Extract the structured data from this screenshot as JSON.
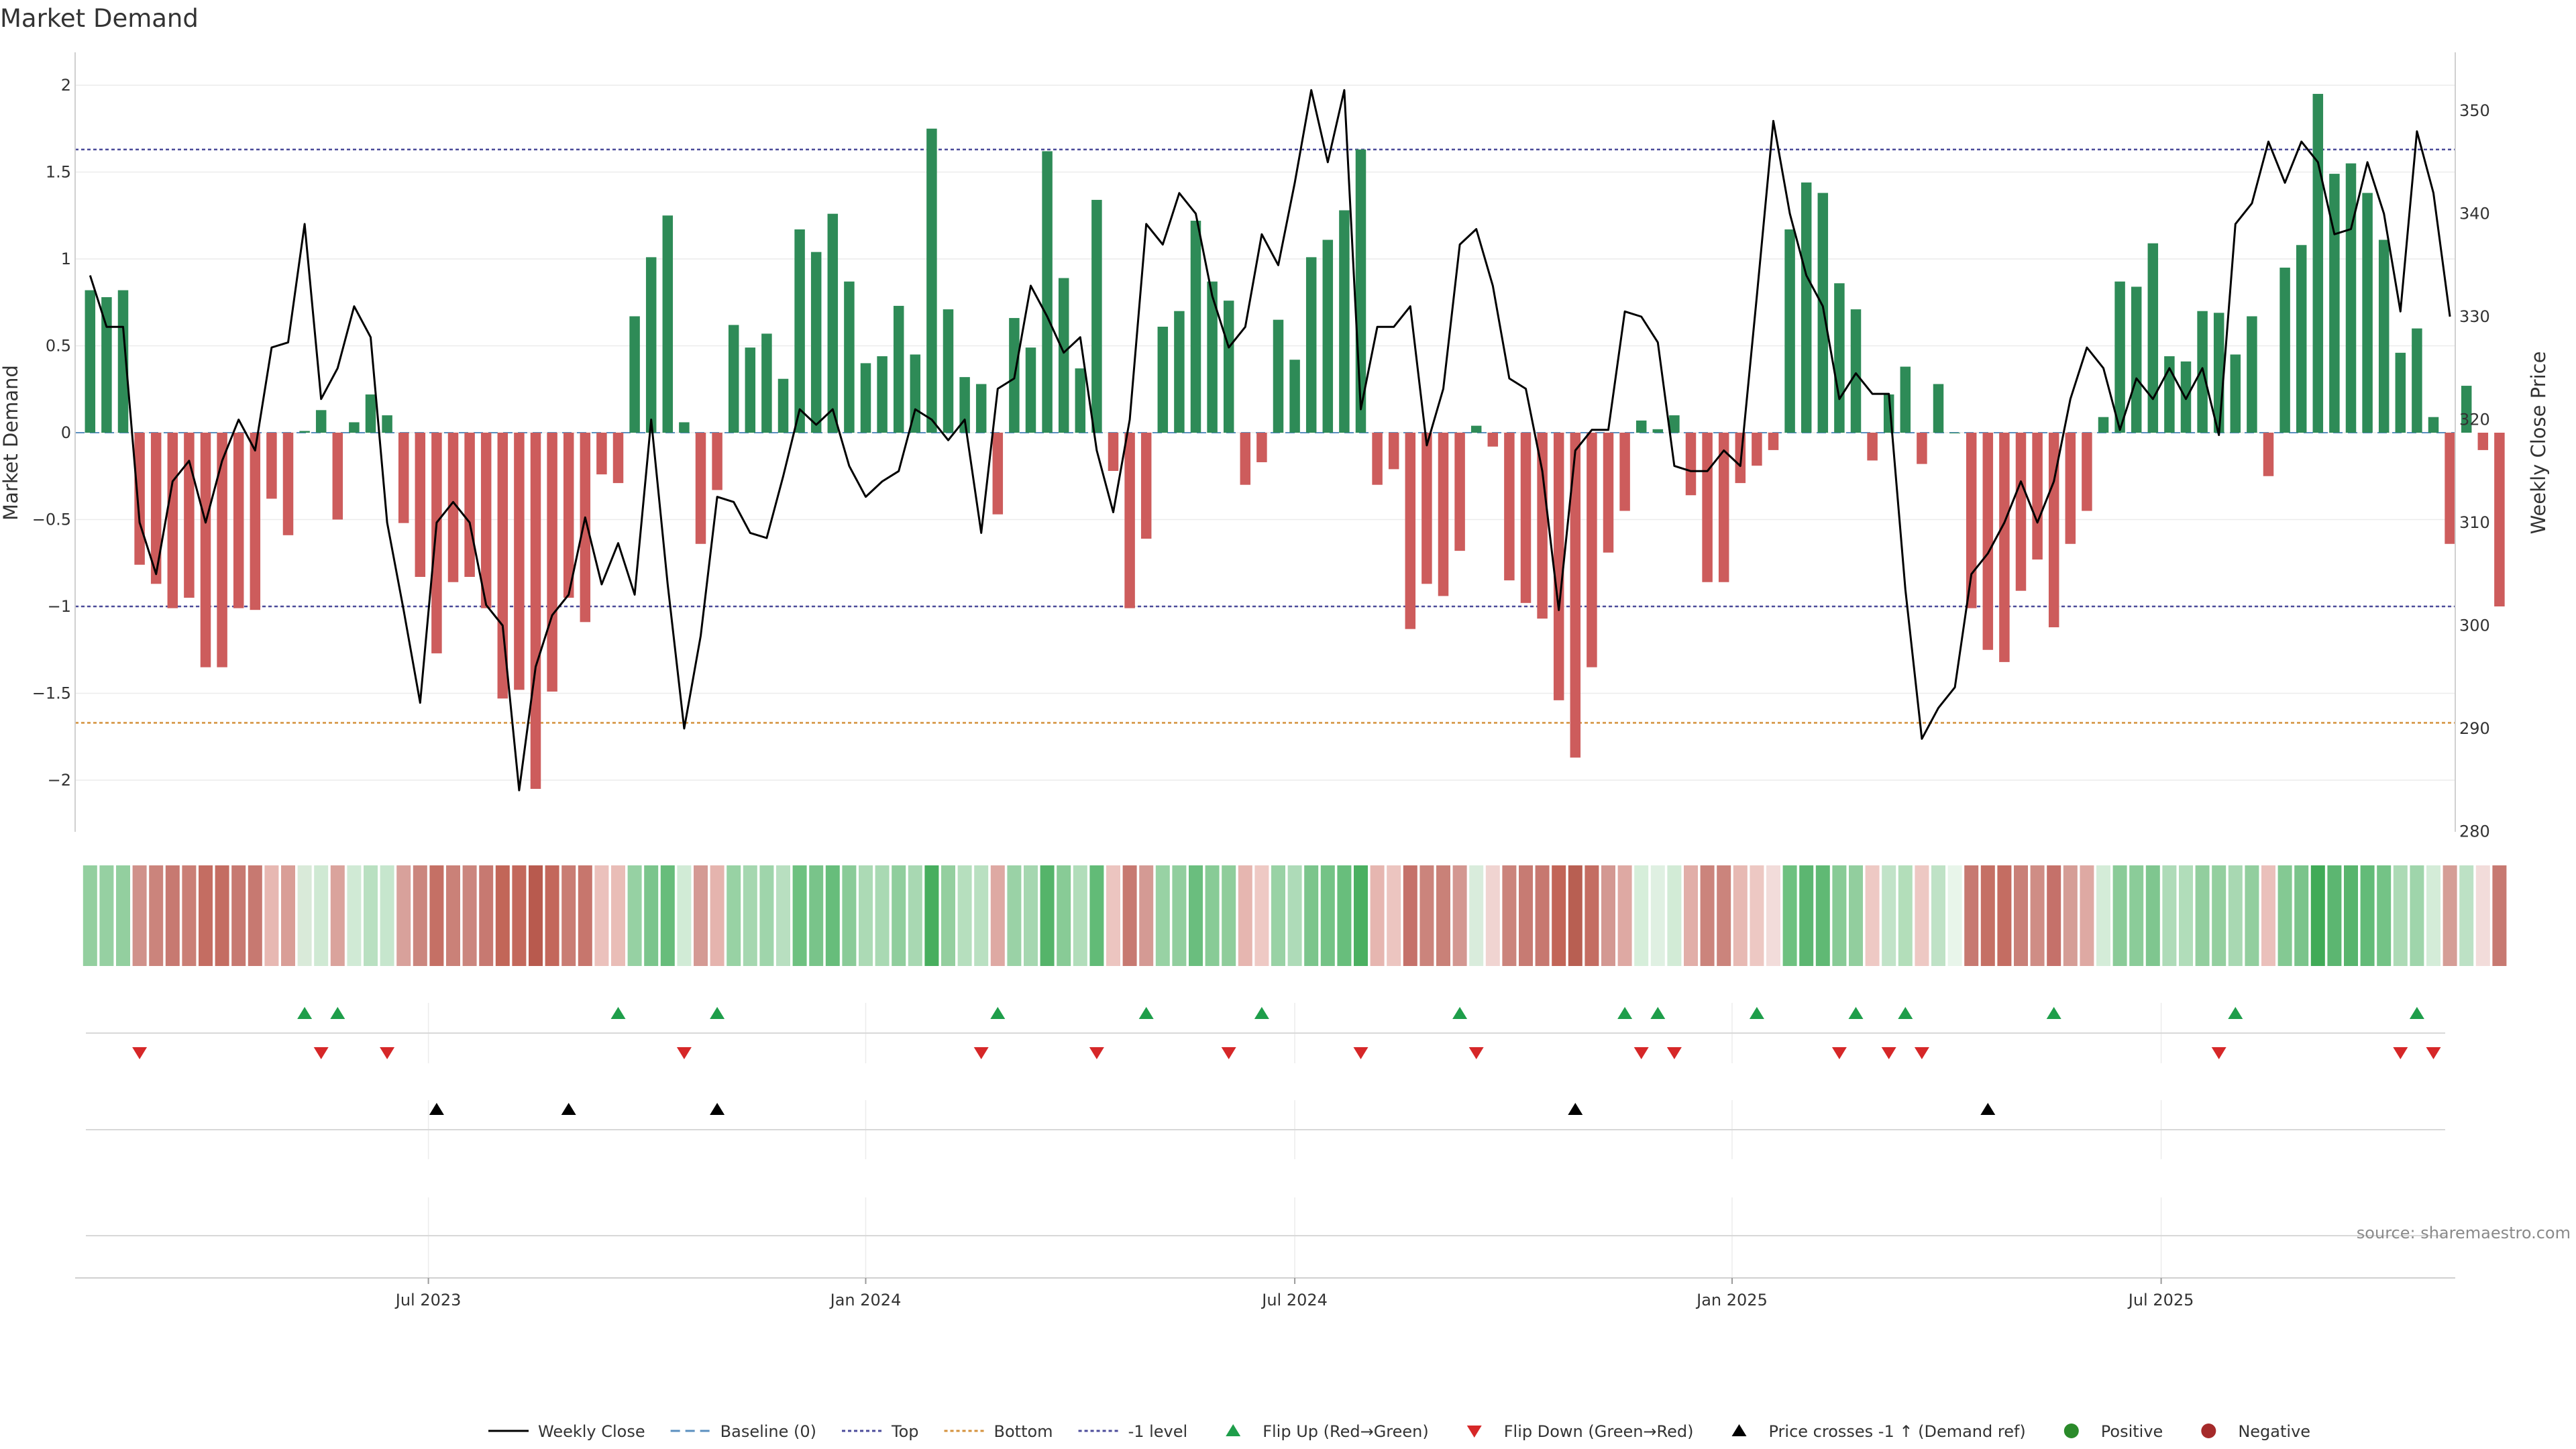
{
  "chart_data": {
    "type": "bar",
    "title": "Market Demand",
    "ylabel": "Market Demand",
    "y2label": "Weekly Close Price",
    "ylim": [
      -2.3,
      2.1
    ],
    "y2lim": [
      280,
      352
    ],
    "yticks": [
      2,
      1.5,
      1,
      0.5,
      0,
      -0.5,
      -1,
      -1.5,
      -2
    ],
    "ytick_labels": [
      "2",
      "1.5",
      "1",
      "0.5",
      "0",
      "−0.5",
      "−1",
      "−1.5",
      "−2"
    ],
    "y2ticks": [
      350,
      340,
      330,
      320,
      310,
      300,
      290,
      280
    ],
    "xticks": [
      {
        "week": 20.5,
        "label": "Jul 2023"
      },
      {
        "week": 47,
        "label": "Jan 2024"
      },
      {
        "week": 73,
        "label": "Jul 2024"
      },
      {
        "week": 99.5,
        "label": "Jan 2025"
      },
      {
        "week": 125.5,
        "label": "Jul 2025"
      }
    ],
    "levels": {
      "top": 1.63,
      "bottom": -1.67,
      "minus_one": -1.0
    },
    "colors": {
      "positive": "#2e8b57",
      "negative": "#cd5c5c",
      "price": "#000000",
      "top": "#4b4b9a",
      "bottom": "#d4913c",
      "minus_one": "#4b4b9a",
      "flip_up": "#1e9e4a",
      "flip_down": "#d62728",
      "cross": "#000000"
    },
    "demand": [
      0.82,
      0.78,
      0.82,
      -0.76,
      -0.87,
      -1.01,
      -0.95,
      -1.35,
      -1.35,
      -1.01,
      -1.02,
      -0.38,
      -0.59,
      0.01,
      0.13,
      -0.5,
      0.06,
      0.22,
      0.1,
      -0.52,
      -0.83,
      -1.27,
      -0.86,
      -0.83,
      -1.01,
      -1.53,
      -1.48,
      -2.05,
      -1.49,
      -0.95,
      -1.09,
      -0.24,
      -0.29,
      0.67,
      1.01,
      1.25,
      0.06,
      -0.64,
      -0.33,
      0.62,
      0.49,
      0.57,
      0.31,
      1.17,
      1.04,
      1.26,
      0.87,
      0.4,
      0.44,
      0.73,
      0.45,
      1.75,
      0.71,
      0.32,
      0.28,
      -0.47,
      0.66,
      0.49,
      1.62,
      0.89,
      0.37,
      1.34,
      -0.22,
      -1.01,
      -0.61,
      0.61,
      0.7,
      1.22,
      0.87,
      0.76,
      -0.3,
      -0.17,
      0.65,
      0.42,
      1.01,
      1.11,
      1.28,
      1.63,
      -0.3,
      -0.21,
      -1.13,
      -0.87,
      -0.94,
      -0.68,
      0.04,
      -0.08,
      -0.85,
      -0.98,
      -1.07,
      -1.54,
      -1.87,
      -1.35,
      -0.69,
      -0.45,
      0.07,
      0.02,
      0.1,
      -0.36,
      -0.86,
      -0.86,
      -0.29,
      -0.19,
      -0.1,
      1.17,
      1.44,
      1.38,
      0.86,
      0.71,
      -0.16,
      0.22,
      0.38,
      -0.18,
      0.28,
      0.0,
      -1.01,
      -1.25,
      -1.32,
      -0.91,
      -0.73,
      -1.12,
      -0.64,
      -0.45,
      0.09,
      0.87,
      0.84,
      1.09,
      0.44,
      0.41,
      0.7,
      0.69,
      0.45,
      0.67,
      -0.25,
      0.95,
      1.08,
      1.95,
      1.49,
      1.55,
      1.38,
      1.11,
      0.46,
      0.6,
      0.09,
      -0.64,
      0.27,
      -0.1,
      -1.0
    ],
    "price": [
      334,
      329,
      329,
      310,
      305,
      314,
      316,
      310,
      316,
      320,
      317,
      327,
      327.5,
      339,
      322,
      325,
      331,
      328,
      310,
      301.5,
      292.5,
      310,
      312,
      310,
      302,
      300,
      284,
      296,
      301,
      303,
      310.5,
      304,
      308,
      303,
      320,
      304,
      290,
      299,
      312.5,
      312,
      309,
      308.5,
      314.5,
      321,
      319.5,
      321,
      315.5,
      312.5,
      314,
      315,
      321,
      320,
      318,
      320,
      309,
      323,
      324,
      333,
      330,
      326.5,
      328,
      317,
      311,
      320,
      339,
      337,
      342,
      340,
      332,
      327,
      329,
      338,
      335,
      343,
      352,
      345,
      352,
      321,
      329,
      329,
      331,
      317.5,
      323,
      337,
      338.5,
      333,
      324,
      323,
      315,
      301.5,
      317,
      319,
      319,
      330.5,
      330,
      327.5,
      315.5,
      315,
      315,
      317,
      315.5,
      332,
      349,
      340,
      334,
      331,
      322,
      324.5,
      322.5,
      322.5,
      303.5,
      289,
      292,
      294,
      305,
      307,
      310,
      314,
      310,
      314,
      322,
      327,
      325,
      319,
      324,
      322,
      325,
      322,
      325,
      318.5,
      339,
      341,
      347,
      343,
      347,
      345,
      338,
      338.5,
      345,
      340,
      330.5,
      348,
      342,
      330
    ],
    "heat_colors": [
      "#93cf9f",
      "#96d0a2",
      "#93cf9f",
      "#d0918a",
      "#cb847c",
      "#c77971",
      "#ca7f76",
      "#c46d62",
      "#c46d62",
      "#c77971",
      "#c77971",
      "#e7b8b2",
      "#d99e97",
      "#d9ead9",
      "#cfe9d3",
      "#daa39c",
      "#d0ead5",
      "#b9e0c1",
      "#c6e6cd",
      "#d8a19b",
      "#cb867e",
      "#c57065",
      "#ca8178",
      "#cb867e",
      "#c77971",
      "#c26658",
      "#c3685b",
      "#b85a4e",
      "#c3675b",
      "#c97d74",
      "#c7766d",
      "#ebc1bc",
      "#e9bdb7",
      "#96d1a3",
      "#7bc58c",
      "#67bd7b",
      "#d1ebd6",
      "#d49a94",
      "#e5b4ae",
      "#98d2a4",
      "#a5d7b0",
      "#9fd5ab",
      "#b8dfc0",
      "#6ec180",
      "#79c48a",
      "#67bd7b",
      "#8acb98",
      "#acdab5",
      "#a9d9b3",
      "#90ce9d",
      "#a8d8b2",
      "#47ae5e",
      "#94cf9f",
      "#b6dfbe",
      "#b9e0c1",
      "#dea9a3",
      "#9ad2a6",
      "#a5d7b0",
      "#55b46a",
      "#88cb96",
      "#b1ddba",
      "#62bb77",
      "#ecc5c0",
      "#c77971",
      "#d49a94",
      "#98d2a4",
      "#91ce9e",
      "#6abe7e",
      "#88cb96",
      "#8fcd9b",
      "#e6b6b0",
      "#eec9c4",
      "#99d2a5",
      "#aedbb8",
      "#7bc58c",
      "#74c386",
      "#68be7c",
      "#4bb061",
      "#e6b6b0",
      "#ecc5c0",
      "#c5716a",
      "#cb847c",
      "#c98178",
      "#d39791",
      "#d9ecdc",
      "#f0d4d1",
      "#cb847c",
      "#c77b73",
      "#c77870",
      "#c26557",
      "#b85f52",
      "#c46d62",
      "#d39892",
      "#dea9a3",
      "#d6eeda",
      "#dff0e2",
      "#d2ebd6",
      "#e1aea8",
      "#cb847c",
      "#cb847c",
      "#e7b9b3",
      "#edc8c3",
      "#f2dcda",
      "#6ec180",
      "#5cb671",
      "#60b974",
      "#88cb96",
      "#92ce9e",
      "#eec9c4",
      "#c1e3c8",
      "#b3deba",
      "#edc8c3",
      "#bfe2c6",
      "#e8f5ea",
      "#c77971",
      "#c57065",
      "#c46d62",
      "#c98078",
      "#cf8d85",
      "#c5716a",
      "#d59d96",
      "#dea9a3",
      "#d4ecd8",
      "#8acb98",
      "#8bcc99",
      "#7fc68f",
      "#aedbb8",
      "#b1ddba",
      "#92ce9e",
      "#93cf9f",
      "#a8d8b2",
      "#92ce9e",
      "#eac0bb",
      "#84c993",
      "#7ac48b",
      "#40ab57",
      "#5cb671",
      "#58b56d",
      "#63bb78",
      "#74c386",
      "#acdab5",
      "#9fd5ab",
      "#d4ecd8",
      "#d59d96",
      "#bde1c5",
      "#f2dcda",
      "#c77971"
    ],
    "flip_up_weeks": [
      13,
      15,
      32,
      38,
      55,
      64,
      71,
      83,
      93,
      95,
      101,
      107,
      110,
      119,
      130,
      141
    ],
    "flip_down_weeks": [
      3,
      14,
      18,
      36,
      54,
      61,
      69,
      77,
      84,
      94,
      96,
      106,
      109,
      111,
      129,
      140,
      142
    ],
    "cross_weeks": [
      21,
      29,
      38,
      90,
      115
    ],
    "legend": [
      {
        "key": "weekly_close",
        "label": "Weekly Close"
      },
      {
        "key": "baseline",
        "label": "Baseline (0)"
      },
      {
        "key": "top",
        "label": "Top"
      },
      {
        "key": "bottom",
        "label": "Bottom"
      },
      {
        "key": "minus_one",
        "label": "-1 level"
      },
      {
        "key": "flip_up",
        "label": "Flip Up (Red→Green)"
      },
      {
        "key": "flip_down",
        "label": "Flip Down (Green→Red)"
      },
      {
        "key": "cross",
        "label": "Price crosses -1 ↑ (Demand ref)"
      },
      {
        "key": "positive",
        "label": "Positive"
      },
      {
        "key": "negative",
        "label": "Negative"
      }
    ],
    "source": "source: sharemaestro.com"
  }
}
